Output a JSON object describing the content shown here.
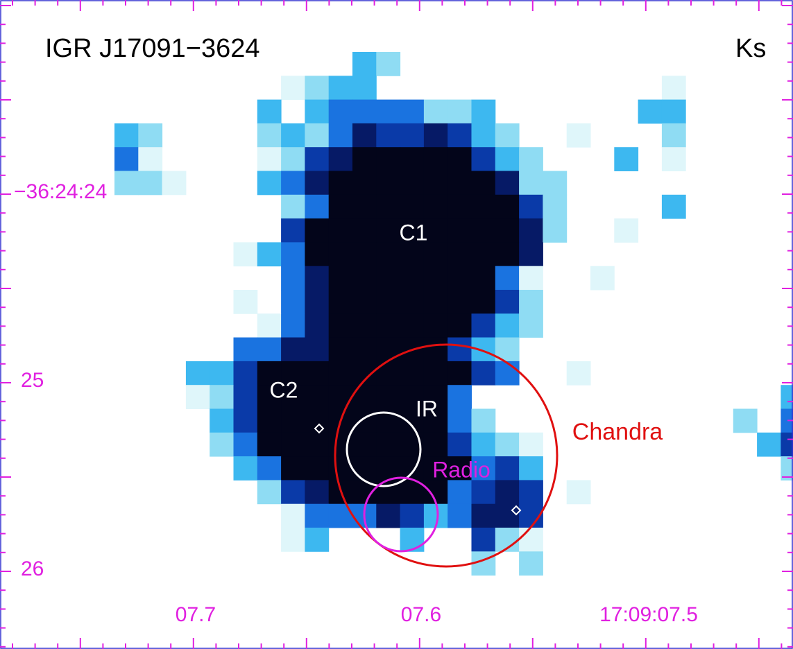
{
  "title": "IGR J17091−3624",
  "band": "Ks",
  "y_labels": [
    "−36:24:24",
    "25",
    "26"
  ],
  "x_labels": [
    "07.7",
    "07.6",
    "17:09:07.5"
  ],
  "annotations": {
    "c1": "C1",
    "c2": "C2",
    "ir": "IR",
    "radio": "Radio",
    "chandra": "Chandra"
  }
}
